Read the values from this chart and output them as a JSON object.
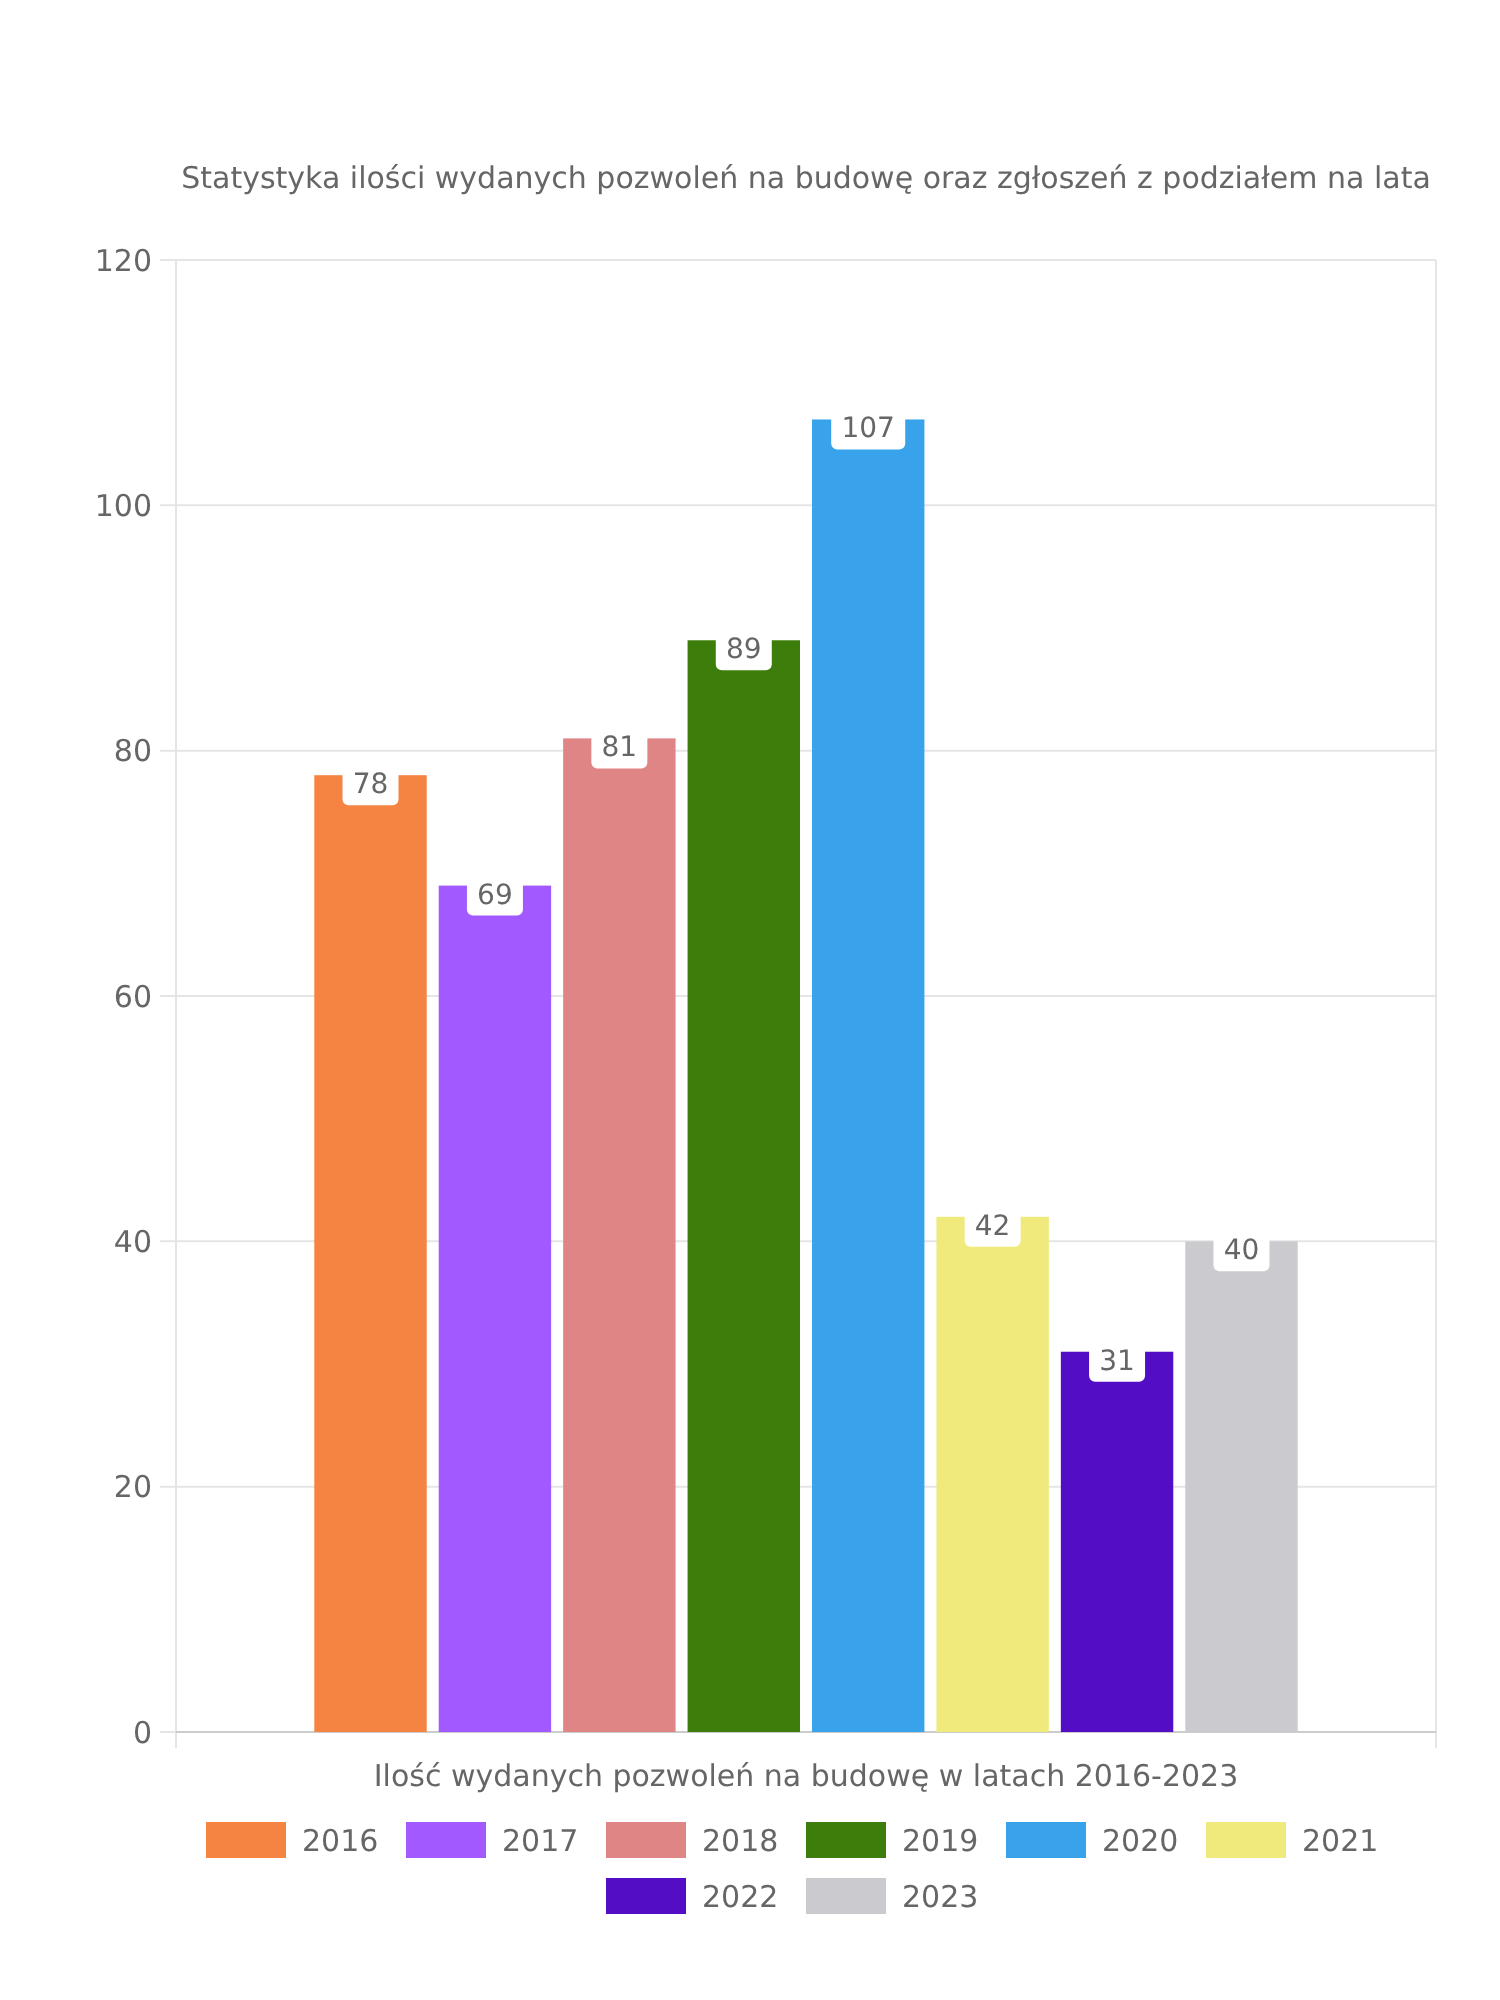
{
  "chart_data": {
    "type": "bar",
    "title": "Statystyka ilości wydanych pozwoleń na budowę oraz zgłoszeń z podziałem na lata",
    "categories": [
      "Ilość wydanych pozwoleń na budowę w latach 2016-2023"
    ],
    "series": [
      {
        "name": "2016",
        "color": "#f58442",
        "values": [
          78
        ]
      },
      {
        "name": "2017",
        "color": "#a259ff",
        "values": [
          69
        ]
      },
      {
        "name": "2018",
        "color": "#e08585",
        "values": [
          81
        ]
      },
      {
        "name": "2019",
        "color": "#3d7d0c",
        "values": [
          89
        ]
      },
      {
        "name": "2020",
        "color": "#38a3eb",
        "values": [
          107
        ]
      },
      {
        "name": "2021",
        "color": "#f0ea7d",
        "values": [
          42
        ]
      },
      {
        "name": "2022",
        "color": "#530dc4",
        "values": [
          31
        ]
      },
      {
        "name": "2023",
        "color": "#cbcbcf",
        "values": [
          40
        ]
      }
    ],
    "ylim": [
      0,
      120
    ],
    "yticks": [
      0,
      20,
      40,
      60,
      80,
      100,
      120
    ],
    "grid": true,
    "legend": "bottom",
    "data_labels": true
  }
}
